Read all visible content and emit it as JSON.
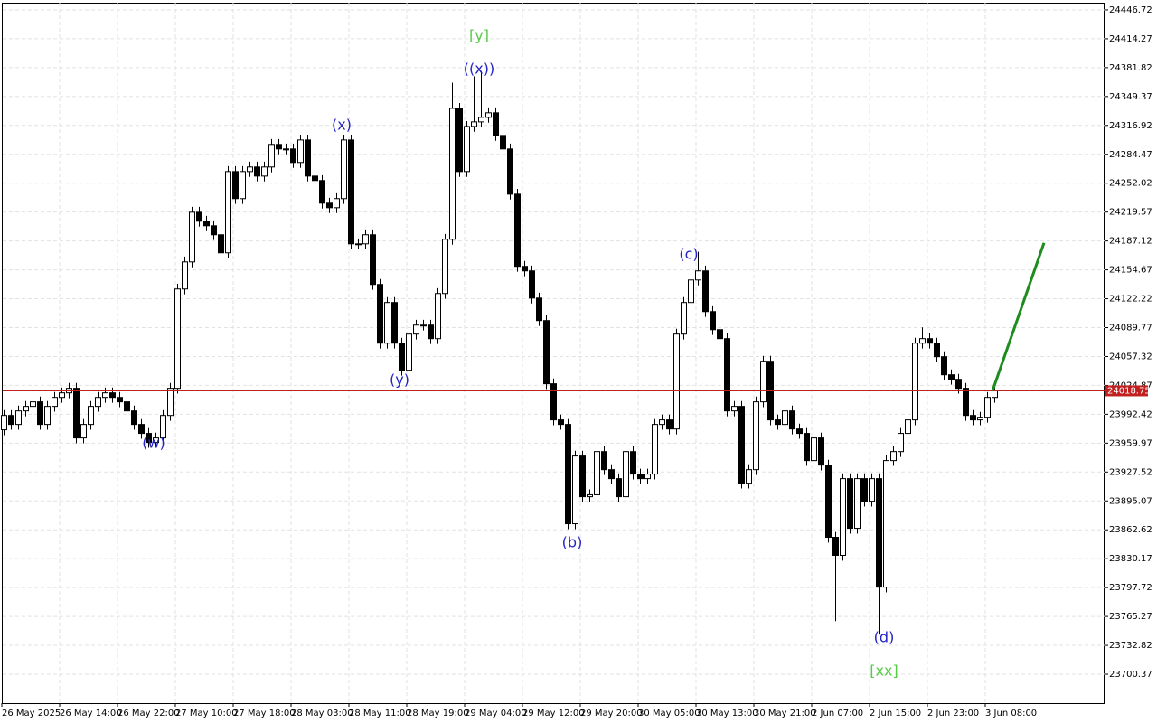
{
  "chart_data": {
    "type": "candlestick",
    "categories": [
      "26 May 2025",
      null,
      null,
      null,
      null,
      null,
      null,
      null,
      "26 May 14:00",
      null,
      null,
      null,
      null,
      null,
      null,
      null,
      "26 May 22:00",
      null,
      null,
      null,
      null,
      null,
      null,
      null,
      "27 May 10:00",
      null,
      null,
      null,
      null,
      null,
      null,
      null,
      "27 May 18:00",
      null,
      null,
      null,
      null,
      null,
      null,
      null,
      "28 May 03:00",
      null,
      null,
      null,
      null,
      null,
      null,
      null,
      "28 May 11:00",
      null,
      null,
      null,
      null,
      null,
      null,
      null,
      "28 May 19:00",
      null,
      null,
      null,
      null,
      null,
      null,
      null,
      "29 May 04:00",
      null,
      null,
      null,
      null,
      null,
      null,
      null,
      "29 May 12:00",
      null,
      null,
      null,
      null,
      null,
      null,
      null,
      "29 May 20:00",
      null,
      null,
      null,
      null,
      null,
      null,
      null,
      "30 May 05:00",
      null,
      null,
      null,
      null,
      null,
      null,
      null,
      "30 May 13:00",
      null,
      null,
      null,
      null,
      null,
      null,
      null,
      "30 May 21:00",
      null,
      null,
      null,
      null,
      null,
      null,
      null,
      "2 Jun 07:00",
      null,
      null,
      null,
      null,
      null,
      null,
      null,
      "2 Jun 15:00",
      null,
      null,
      null,
      null,
      null,
      null,
      null,
      "2 Jun 23:00",
      null,
      null,
      null,
      null,
      null,
      null,
      null,
      "3 Jun 08:00",
      null
    ],
    "open": [
      23975,
      23991.1,
      23981.0,
      23996.2,
      24001.3,
      24006.4,
      23981.0,
      24001.3,
      24011.4,
      24016.5,
      24021.6,
      23965.8,
      23981.0,
      24001.3,
      24011.4,
      24016.5,
      24011.4,
      24006.4,
      23996.2,
      23981.0,
      23970.9,
      23960.7,
      23965.8,
      23991.1,
      24021.6,
      24133.2,
      24163.6,
      24219.4,
      24209.3,
      24204.2,
      24194.1,
      24173.8,
      24265.1,
      24234.7,
      24265.1,
      24270.2,
      24260.0,
      24270.2,
      24295.6,
      24290.5,
      24290.5,
      24275.3,
      24300.6,
      24260.0,
      24255.0,
      24229.6,
      24224.5,
      24234.7,
      24300.6,
      24183.9,
      24183.9,
      24194.1,
      24138.3,
      24072.3,
      24118.0,
      24072.3,
      24041.9,
      24082.5,
      24092.6,
      24092.6,
      24077.4,
      24128.1,
      24189.0,
      24336.1,
      24265.1,
      24315.8,
      24320.9,
      24326.0,
      24331.1,
      24305.7,
      24290.5,
      24239.7,
      24158.6,
      24153.5,
      24123.0,
      24097.7,
      24026.7,
      23986.1,
      23981.0,
      23869.4,
      23945.5,
      23899.8,
      23902.0,
      23950.5,
      23930.2,
      23920.1,
      23899.8,
      23950.5,
      23925.2,
      23920.1,
      23925.2,
      23981.0,
      23986.1,
      23975.9,
      24082.5,
      24118.0,
      24143.3,
      24153.5,
      24107.8,
      24087.5,
      24077.4,
      23996.2,
      24001.3,
      23915.0,
      23930.2,
      24006.4,
      24052.0,
      23986.1,
      23981.0,
      23996.2,
      23975.9,
      23970.9,
      23940.4,
      23965.8,
      23935.3,
      23854.2,
      23833.9,
      23920.1,
      23864.3,
      23920.1,
      23894.7,
      23920.1,
      23798.3,
      23940.4,
      23950.5,
      23970.9,
      23986.1,
      24072.3,
      24077.4,
      24072.3,
      24057.1,
      24036.8,
      24031.7,
      24021.6,
      23991.1,
      23986.1,
      23989.1,
      24011.4
    ],
    "high": [
      23997.1,
      23997.1,
      24002.2,
      24007.3,
      24012.4,
      24012.4,
      24007.3,
      24017.4,
      24022.5,
      24027.6,
      24027.6,
      23987.0,
      24007.3,
      24017.4,
      24022.5,
      24022.5,
      24017.4,
      24012.4,
      24002.2,
      23987.0,
      23976.9,
      23971.8,
      23997.1,
      24027.6,
      24139.2,
      24169.6,
      24225.4,
      24225.4,
      24215.3,
      24210.2,
      24200.1,
      24271.1,
      24271.1,
      24271.1,
      24276.2,
      24276.2,
      24276.2,
      24301.6,
      24301.6,
      24296.5,
      24296.5,
      24306.6,
      24306.6,
      24266.0,
      24261.0,
      24235.6,
      24240.7,
      24306.6,
      24306.6,
      24189.9,
      24200.1,
      24200.1,
      24144.3,
      24124.0,
      24124.0,
      24078.3,
      24088.5,
      24098.6,
      24098.6,
      24098.6,
      24134.1,
      24195.0,
      24365.0,
      24342.1,
      24321.8,
      24372.0,
      24378.0,
      24337.1,
      24337.1,
      24311.7,
      24296.5,
      24245.7,
      24164.6,
      24159.5,
      24129.0,
      24103.7,
      24032.7,
      23992.1,
      23987.0,
      23951.5,
      23951.5,
      23908.0,
      23956.5,
      23956.5,
      23936.2,
      23926.1,
      23956.5,
      23956.5,
      23931.2,
      23931.2,
      23987.0,
      23992.1,
      23992.1,
      24088.5,
      24124.0,
      24149.3,
      24175.0,
      24159.5,
      24113.8,
      24093.5,
      24083.4,
      24007.3,
      24007.3,
      23936.2,
      24012.4,
      24058.0,
      24058.0,
      23992.1,
      24002.2,
      24002.2,
      23981.9,
      23976.9,
      23971.8,
      23971.8,
      23941.3,
      23860.2,
      23926.1,
      23926.1,
      23926.1,
      23926.1,
      23926.1,
      23926.1,
      23946.4,
      23956.5,
      23976.9,
      23992.1,
      24078.3,
      24090.0,
      24083.4,
      24078.3,
      24063.1,
      24042.8,
      24037.7,
      24027.6,
      23997.1,
      23995.1,
      24017.4,
      24024.75
    ],
    "low": [
      23969,
      23975.0,
      23975.0,
      23990.2,
      23995.3,
      23975.0,
      23975.0,
      23995.3,
      24005.4,
      24010.5,
      23959.8,
      23959.8,
      23975.0,
      23995.3,
      24005.4,
      24005.4,
      24000.4,
      23990.2,
      23975.0,
      23964.9,
      23954.7,
      23954.7,
      23959.8,
      23985.1,
      24015.6,
      24127.2,
      24157.6,
      24203.3,
      24198.2,
      24188.1,
      24167.8,
      24167.8,
      24228.7,
      24228.7,
      24259.1,
      24254.0,
      24254.0,
      24264.2,
      24284.5,
      24284.5,
      24269.3,
      24269.3,
      24254.0,
      24249.0,
      24223.6,
      24218.5,
      24218.5,
      24228.7,
      24177.9,
      24177.9,
      24177.9,
      24132.3,
      24066.3,
      24066.3,
      24066.3,
      24035.9,
      24035.9,
      24076.5,
      24086.6,
      24071.4,
      24071.4,
      24122.1,
      24183.0,
      24259.1,
      24259.1,
      24309.8,
      24314.9,
      24320.0,
      24299.7,
      24284.5,
      24233.7,
      24152.6,
      24147.5,
      24117.0,
      24091.7,
      24020.7,
      23980.1,
      23975.0,
      23863.4,
      23863.4,
      23893.8,
      23893.8,
      23896.0,
      23924.2,
      23914.1,
      23893.8,
      23893.8,
      23919.2,
      23914.1,
      23914.1,
      23919.2,
      23975.0,
      23969.9,
      23969.9,
      24076.5,
      24112.0,
      24137.3,
      24101.8,
      24081.5,
      24071.4,
      23990.2,
      23990.2,
      23909.0,
      23909.0,
      23924.2,
      24000.4,
      23980.1,
      23975.0,
      23975.0,
      23969.9,
      23964.9,
      23934.4,
      23934.4,
      23929.3,
      23848.2,
      23760.0,
      23827.9,
      23858.3,
      23858.3,
      23888.7,
      23888.7,
      23745.0,
      23792.3,
      23934.4,
      23944.5,
      23964.9,
      23980.1,
      24066.3,
      24066.3,
      24051.1,
      24030.8,
      24025.7,
      24015.6,
      23985.1,
      23980.1,
      23980.1,
      23983.1,
      24005.4
    ],
    "close": [
      23991.1,
      23981.0,
      23996.2,
      24001.3,
      24006.4,
      23981.0,
      24001.3,
      24011.4,
      24016.5,
      24021.6,
      23965.8,
      23981.0,
      24001.3,
      24011.4,
      24016.5,
      24011.4,
      24006.4,
      23996.2,
      23981.0,
      23970.9,
      23960.7,
      23965.8,
      23991.1,
      24021.6,
      24133.2,
      24163.6,
      24219.4,
      24209.3,
      24204.2,
      24194.1,
      24173.8,
      24265.1,
      24234.7,
      24265.1,
      24270.2,
      24260.0,
      24270.2,
      24295.6,
      24290.5,
      24290.5,
      24275.3,
      24300.6,
      24260.0,
      24255.0,
      24229.6,
      24224.5,
      24234.7,
      24300.6,
      24183.9,
      24183.9,
      24194.1,
      24138.3,
      24072.3,
      24118.0,
      24072.3,
      24041.9,
      24082.5,
      24092.6,
      24092.6,
      24077.4,
      24128.1,
      24189.0,
      24336.1,
      24265.1,
      24315.8,
      24320.9,
      24326.0,
      24331.1,
      24305.7,
      24290.5,
      24239.7,
      24158.6,
      24153.5,
      24123.0,
      24097.7,
      24026.7,
      23986.1,
      23981.0,
      23869.4,
      23945.5,
      23899.8,
      23902.0,
      23950.5,
      23930.2,
      23920.1,
      23899.8,
      23950.5,
      23925.2,
      23920.1,
      23925.2,
      23981.0,
      23986.1,
      23975.9,
      24082.5,
      24118.0,
      24143.3,
      24153.5,
      24107.8,
      24087.5,
      24077.4,
      23996.2,
      24001.3,
      23915.0,
      23930.2,
      24006.4,
      24052.0,
      23986.1,
      23981.0,
      23996.2,
      23975.9,
      23970.9,
      23940.4,
      23965.8,
      23935.3,
      23854.2,
      23833.9,
      23920.1,
      23864.3,
      23920.1,
      23894.7,
      23920.1,
      23798.3,
      23940.4,
      23950.5,
      23970.9,
      23986.1,
      24072.3,
      24077.4,
      24072.3,
      24057.1,
      24036.8,
      24031.7,
      24021.6,
      23991.1,
      23986.1,
      23989.1,
      24011.4,
      24018.75
    ],
    "up_color": "#ffffff",
    "down_color": "#000000",
    "ylim": [
      23667.9,
      24454.8
    ],
    "yticks": [
      24446.72,
      24414.27,
      24381.82,
      24349.37,
      24316.92,
      24284.47,
      24252.02,
      24219.57,
      24187.12,
      24154.67,
      24122.22,
      24089.77,
      24057.32,
      24024.87,
      23992.42,
      23959.97,
      23927.52,
      23895.07,
      23862.62,
      23830.17,
      23797.72,
      23765.27,
      23732.82,
      23700.37
    ],
    "grid": true,
    "current_price": 24018.75,
    "current_price_color": "#c0201f",
    "forecast": {
      "values": [
        24018.75,
        24185.0
      ],
      "color": "#1e8c1e"
    },
    "annotations": [
      {
        "text": "(w)",
        "color": "#2323c8"
      },
      {
        "text": "(x)",
        "color": "#2323c8"
      },
      {
        "text": "((x))",
        "color": "#2323c8"
      },
      {
        "text": "[y]",
        "color": "#55cc44"
      },
      {
        "text": "(y)",
        "color": "#2323c8"
      },
      {
        "text": "(b)",
        "color": "#2323c8"
      },
      {
        "text": "(c)",
        "color": "#2323c8"
      },
      {
        "text": "(d)",
        "color": "#2323c8"
      },
      {
        "text": "[xx]",
        "color": "#55cc44"
      }
    ]
  }
}
